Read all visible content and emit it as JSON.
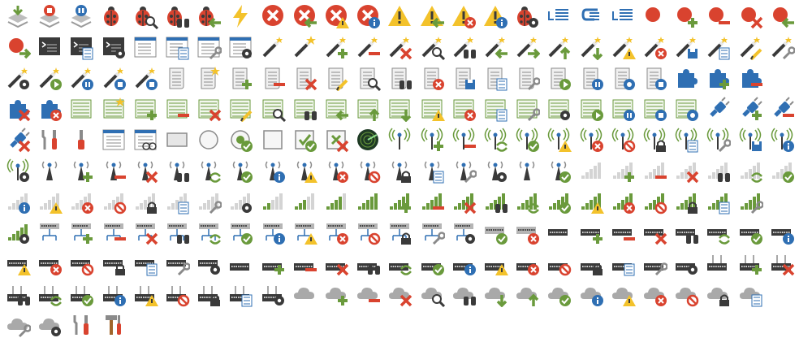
{
  "title": "",
  "colors": {
    "green": "#6a9a3c",
    "red": "#d9432f",
    "blue": "#2f6fb3",
    "amber": "#f3c22b",
    "gray": "#8a8a8a",
    "dark": "#3a3a3a",
    "cloud": "#a9a9a9"
  },
  "rows": [
    [
      "download-stack-icon",
      "stop-stack-icon",
      "pause-stack-icon",
      "ladybug-icon",
      "ladybug-search-icon",
      "ladybug-binoculars-icon",
      "ladybug-back-icon",
      "lightning-icon",
      "error-icon",
      "error-back-icon",
      "error-warning-icon",
      "error-info-icon",
      "warning-icon",
      "warning-back-icon",
      "warning-error-icon",
      "warning-info-icon",
      "ladybug-gear-icon",
      "indent-icon",
      "return-icon",
      "list-indent-icon",
      "record-icon",
      "record-add-icon",
      "record-remove-icon",
      "record-delete-icon",
      "record-back-icon"
    ],
    [
      "record-export-icon",
      "console-window-icon",
      "console-list-icon",
      "console-gear-icon",
      "window-icon",
      "window-list-icon",
      "window-wrench-icon",
      "window-gear-icon",
      "magic-wand-icon",
      "magic-wand-star-icon",
      "magic-wand-add-icon",
      "magic-wand-remove-icon",
      "magic-wand-delete-icon",
      "magic-wand-search-icon",
      "magic-wand-binoculars-icon",
      "magic-wand-back-icon",
      "magic-wand-forward-icon",
      "magic-wand-up-icon",
      "magic-wand-down-icon",
      "magic-wand-warning-icon",
      "magic-wand-error-icon",
      "magic-wand-save-icon",
      "magic-wand-list-icon",
      "magic-wand-edit-icon",
      "magic-wand-wrench-icon"
    ],
    [
      "magic-wand-gear-icon",
      "magic-wand-play-icon",
      "magic-wand-pause-icon",
      "magic-wand-stop-icon",
      "magic-wand-halt-icon",
      "script-icon",
      "script-star-icon",
      "script-add-icon",
      "script-remove-icon",
      "script-delete-icon",
      "script-edit-icon",
      "script-search-icon",
      "script-binoculars-icon",
      "script-error-icon",
      "script-save-icon",
      "script-list-icon",
      "script-wrench-icon",
      "script-play-icon",
      "script-pause-icon",
      "script-record-icon",
      "script-stop-icon",
      "puzzle-icon",
      "puzzle-add-icon",
      "puzzle-remove-icon"
    ],
    [
      "puzzle-delete-icon",
      "puzzle-error-icon",
      "table-icon",
      "table-star-icon",
      "table-add-icon",
      "table-remove-icon",
      "table-delete-icon",
      "table-edit-icon",
      "table-search-icon",
      "table-binoculars-icon",
      "table-back-icon",
      "table-up-icon",
      "table-down-icon",
      "table-warning-icon",
      "table-error-icon",
      "table-list-icon",
      "table-wrench-icon",
      "table-gear-icon",
      "table-play-icon",
      "table-pause-icon",
      "table-stop-icon",
      "table-record-icon",
      "plug-icon",
      "plug-add-icon",
      "plug-remove-icon"
    ],
    [
      "plug-delete-icon",
      "tools-icon",
      "screwdriver-icon",
      "window-form-icon",
      "window-glasses-icon",
      "rectangle-icon",
      "radio-empty-icon",
      "radio-checked-icon",
      "checkbox-empty-icon",
      "checkbox-checked-icon",
      "checkbox-cross-icon",
      "radar-icon",
      "antenna-icon",
      "antenna-add-icon",
      "antenna-remove-icon",
      "antenna-refresh-icon",
      "antenna-check-icon",
      "antenna-warning-icon",
      "antenna-error-icon",
      "antenna-blocked-icon",
      "antenna-lock-icon",
      "antenna-list-icon",
      "antenna-wrench-icon",
      "antenna-save-icon",
      "antenna-info-icon"
    ],
    [
      "antenna-gear-icon",
      "tower-icon",
      "tower-add-icon",
      "tower-remove-icon",
      "tower-delete-icon",
      "tower-binoculars-icon",
      "tower-refresh-icon",
      "tower-check-icon",
      "tower-info-icon",
      "tower-warning-icon",
      "tower-error-icon",
      "tower-blocked-icon",
      "tower-lock-icon",
      "tower-list-icon",
      "tower-wrench-icon",
      "tower-gear-icon",
      "tower-plain-icon",
      "tower-check2-icon",
      "signal-empty-icon",
      "signal-add-icon",
      "signal-remove-icon",
      "signal-delete-icon",
      "signal-binoculars-icon",
      "signal-refresh-icon",
      "signal-check-icon"
    ],
    [
      "signal-info-icon",
      "signal-warning-icon",
      "signal-error-icon",
      "signal-blocked-icon",
      "signal-lock-icon",
      "signal-list-icon",
      "signal-wrench-icon",
      "signal-gear-icon",
      "signal-low-icon",
      "signal-medium-icon",
      "signal-high-icon",
      "signal-full-icon",
      "signal-full-add-icon",
      "signal-full-remove-icon",
      "signal-full-delete-icon",
      "signal-full-binoculars-icon",
      "signal-full-refresh-icon",
      "signal-full-check-icon",
      "signal-full-warning-icon",
      "signal-full-error-icon",
      "signal-full-blocked-icon",
      "signal-full-lock-icon",
      "signal-full-list-icon",
      "signal-full-wrench-icon"
    ],
    [
      "signal-full-gear-icon",
      "network-icon",
      "network-add-icon",
      "network-remove-icon",
      "network-delete-icon",
      "network-binoculars-icon",
      "network-refresh-icon",
      "network-check-icon",
      "network-info-icon",
      "network-warning-icon",
      "network-error-icon",
      "network-blocked-icon",
      "network-lock-icon",
      "network-wrench-icon",
      "network-gear-icon",
      "switch-check-icon",
      "switch-error-icon",
      "router-icon",
      "router-add-icon",
      "router-remove-icon",
      "router-delete-icon",
      "router-binoculars-icon",
      "router-refresh-icon",
      "router-check-icon",
      "router-info-icon"
    ],
    [
      "router-warning-icon",
      "router-error-icon",
      "router-blocked-icon",
      "router-lock-icon",
      "router-list-icon",
      "router-wrench-icon",
      "router-gear-icon",
      "hub-icon",
      "hub-add-icon",
      "hub-remove-icon",
      "hub-delete-icon",
      "hub-binoculars-icon",
      "hub-refresh-icon",
      "hub-check-icon",
      "hub-info-icon",
      "hub-warning-icon",
      "hub-error-icon",
      "hub-blocked-icon",
      "hub-lock-icon",
      "hub-list-icon",
      "hub-wrench-icon",
      "hub-gear-icon",
      "hub-antenna-icon",
      "hub-antenna-add-icon",
      "hub-antenna-delete-icon"
    ],
    [
      "hub-antenna-binoculars-icon",
      "hub-antenna-refresh-icon",
      "hub-antenna-check-icon",
      "hub-antenna-info-icon",
      "hub-antenna-warning-icon",
      "hub-antenna-blocked-icon",
      "hub-antenna-lock-icon",
      "hub-antenna-list-icon",
      "hub-antenna-gear-icon",
      "cloud-icon",
      "cloud-add-icon",
      "cloud-remove-icon",
      "cloud-delete-icon",
      "cloud-search-icon",
      "cloud-binoculars-icon",
      "cloud-download-icon",
      "cloud-upload-icon",
      "cloud-check-icon",
      "cloud-info-icon",
      "cloud-warning-icon",
      "cloud-error-icon",
      "cloud-blocked-icon",
      "cloud-lock-icon",
      "cloud-list-icon"
    ],
    [
      "cloud-wrench-icon",
      "cloud-gear-icon",
      "tools-red-icon",
      "hammer-screwdriver-icon"
    ]
  ]
}
